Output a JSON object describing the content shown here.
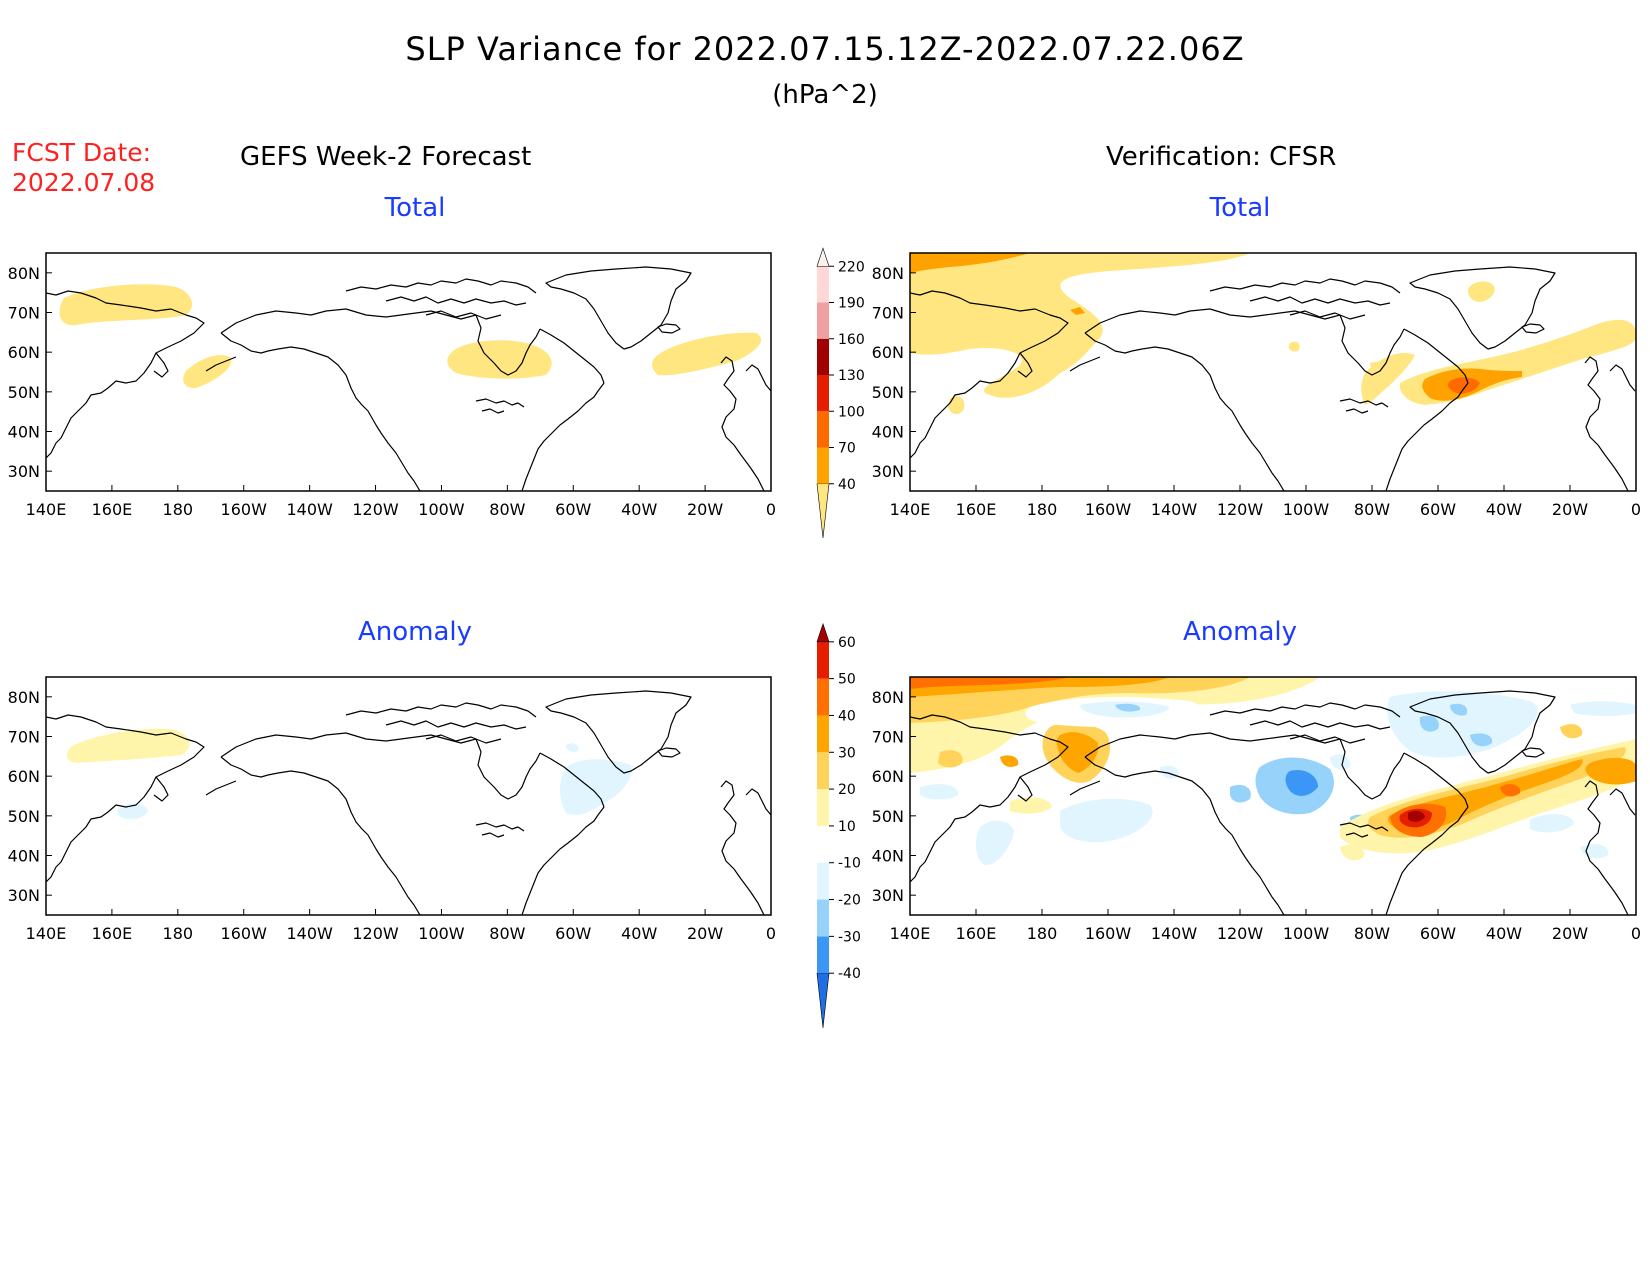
{
  "header": {
    "title": "SLP Variance for 2022.07.15.12Z-2022.07.22.06Z",
    "units": "(hPa^2)",
    "fcst_label": "FCST Date:",
    "fcst_date": "2022.07.08",
    "left_column_title": "GEFS Week-2 Forecast",
    "right_column_title": "Verification: CFSR"
  },
  "panels": [
    {
      "id": "fcst-total",
      "subtitle": "Total"
    },
    {
      "id": "verif-total",
      "subtitle": "Total"
    },
    {
      "id": "fcst-anomaly",
      "subtitle": "Anomaly"
    },
    {
      "id": "verif-anomaly",
      "subtitle": "Anomaly"
    }
  ],
  "axes": {
    "lat_labels": [
      "80N",
      "70N",
      "60N",
      "50N",
      "40N",
      "30N"
    ],
    "lon_labels": [
      "140E",
      "160E",
      "180",
      "160W",
      "140W",
      "120W",
      "100W",
      "80W",
      "60W",
      "40W",
      "20W",
      "0"
    ]
  },
  "colorbars": {
    "total": {
      "levels": [
        "40",
        "70",
        "100",
        "130",
        "160",
        "190",
        "220"
      ],
      "colors": [
        "#ffe680",
        "#ffa200",
        "#ff6a00",
        "#e61e00",
        "#a00000",
        "#f0a0a0",
        "#ffd7d7",
        "#fff0f0"
      ]
    },
    "anomaly": {
      "levels": [
        "-40",
        "-30",
        "-20",
        "-10",
        "10",
        "20",
        "30",
        "40",
        "50",
        "60"
      ],
      "colors": [
        "#1e6ee6",
        "#3c96f5",
        "#96d2fa",
        "#e1f5ff",
        "#ffffff",
        "#fff5aa",
        "#ffd25a",
        "#ffa500",
        "#ff7000",
        "#e61e00",
        "#a50000"
      ]
    }
  }
}
